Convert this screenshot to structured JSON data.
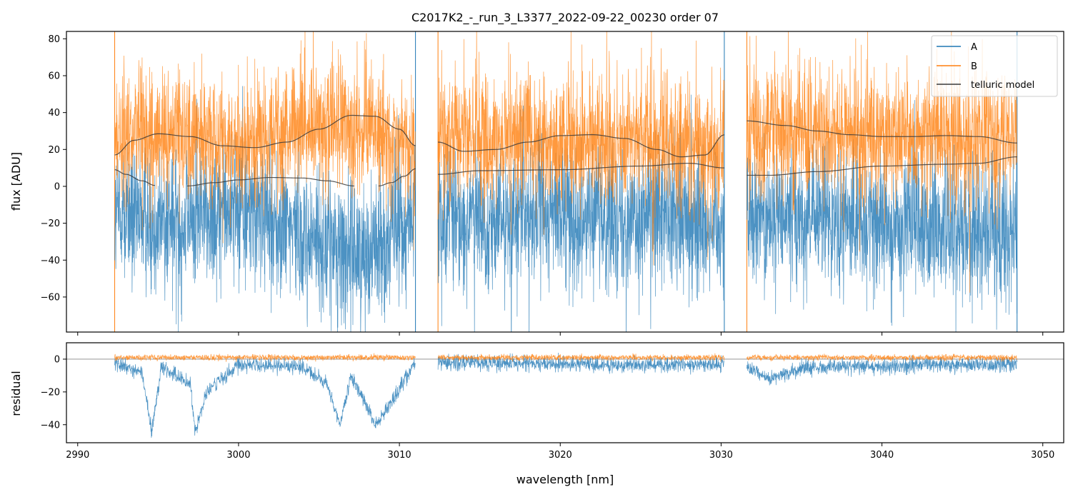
{
  "chart_data": [
    {
      "type": "line",
      "panel": "flux",
      "title": "C2017K2_-_run_3_L3377_2022-09-22_00230  order 07",
      "xlabel": "",
      "ylabel": "flux [ADU]",
      "xlim": [
        2989.3,
        3051.3
      ],
      "ylim": [
        -79,
        84
      ],
      "yticks": [
        -60,
        -40,
        -20,
        0,
        20,
        40,
        60,
        80
      ],
      "ytick_labels": [
        "−60",
        "−40",
        "−20",
        "0",
        "20",
        "40",
        "60",
        "80"
      ],
      "xticks": [
        2990,
        3000,
        3010,
        3020,
        3030,
        3040,
        3050
      ],
      "legend": {
        "placement": "top-right",
        "entries": [
          {
            "label": "A",
            "color": "#1f77b4"
          },
          {
            "label": "B",
            "color": "#ff7f0e"
          },
          {
            "label": "telluric model",
            "color": "#3a3a3a"
          }
        ]
      },
      "segments": [
        [
          2992.3,
          3011.0
        ],
        [
          3012.4,
          3030.2
        ],
        [
          3031.6,
          3048.4
        ]
      ],
      "series": [
        {
          "name": "A",
          "color": "#1f77b4",
          "center_points": [
            [
              2992.3,
              -15
            ],
            [
              2995,
              -20
            ],
            [
              3000,
              -12
            ],
            [
              3005,
              -30
            ],
            [
              3008,
              -35
            ],
            [
              3011,
              -18
            ],
            [
              3012.4,
              -20
            ],
            [
              3020,
              -15
            ],
            [
              3025,
              -18
            ],
            [
              3030.2,
              -20
            ],
            [
              3031.6,
              -15
            ],
            [
              3040,
              -20
            ],
            [
              3048.4,
              -25
            ]
          ],
          "noise_amplitude": 32
        },
        {
          "name": "B",
          "color": "#ff7f0e",
          "center_points": [
            [
              2992.3,
              25
            ],
            [
              2995,
              30
            ],
            [
              3000,
              25
            ],
            [
              3005,
              35
            ],
            [
              3008,
              30
            ],
            [
              3011,
              20
            ],
            [
              3012.4,
              28
            ],
            [
              3020,
              25
            ],
            [
              3025,
              25
            ],
            [
              3030.2,
              20
            ],
            [
              3031.6,
              30
            ],
            [
              3040,
              28
            ],
            [
              3048.4,
              25
            ]
          ],
          "noise_amplitude": 30
        }
      ],
      "telluric_model": {
        "name": "telluric model",
        "color": "#3a3a3a",
        "upper": [
          [
            [
              2992.3,
              17
            ],
            [
              2993.5,
              25
            ],
            [
              2995,
              28.5
            ],
            [
              2997,
              27
            ],
            [
              2999,
              22
            ],
            [
              3001,
              21
            ],
            [
              3003,
              24
            ],
            [
              3005,
              31
            ],
            [
              3007,
              38.5
            ],
            [
              3008.5,
              38
            ],
            [
              3010,
              31
            ],
            [
              3011,
              22
            ]
          ],
          [
            [
              3012.4,
              24
            ],
            [
              3014,
              19
            ],
            [
              3016,
              20
            ],
            [
              3018,
              24
            ],
            [
              3020,
              27.5
            ],
            [
              3022,
              28
            ],
            [
              3024,
              26
            ],
            [
              3026,
              20
            ],
            [
              3027.5,
              16
            ],
            [
              3029,
              17
            ],
            [
              3030.2,
              28
            ]
          ],
          [
            [
              3031.6,
              35.5
            ],
            [
              3034,
              33
            ],
            [
              3036,
              30
            ],
            [
              3038,
              28
            ],
            [
              3040,
              27
            ],
            [
              3042,
              27
            ],
            [
              3044,
              27.5
            ],
            [
              3046,
              27
            ],
            [
              3048.4,
              23.5
            ]
          ]
        ],
        "lower": [
          [
            [
              2992.3,
              9
            ],
            [
              2993,
              6.5
            ],
            [
              2994,
              3
            ],
            [
              2994.8,
              0.5
            ]
          ],
          [
            [
              2996.8,
              0.2
            ],
            [
              2998.5,
              2
            ],
            [
              3000,
              3.5
            ],
            [
              3002,
              4.8
            ],
            [
              3004,
              4.5
            ],
            [
              3005.5,
              3
            ],
            [
              3007.2,
              0.2
            ]
          ],
          [
            [
              3008.7,
              0.2
            ],
            [
              3009.5,
              2
            ],
            [
              3010.3,
              5.5
            ],
            [
              3011,
              9.5
            ]
          ],
          [
            [
              3012.4,
              6.5
            ],
            [
              3015,
              8.5
            ],
            [
              3020,
              9
            ],
            [
              3025,
              11
            ],
            [
              3028,
              12.5
            ],
            [
              3030.2,
              10
            ]
          ],
          [
            [
              3031.6,
              6
            ],
            [
              3033,
              6
            ],
            [
              3036,
              8
            ],
            [
              3040,
              11
            ],
            [
              3044,
              12
            ],
            [
              3046,
              12.5
            ],
            [
              3048.4,
              16
            ]
          ]
        ]
      }
    },
    {
      "type": "line",
      "panel": "residual",
      "title": "",
      "xlabel": "wavelength [nm]",
      "ylabel": "residual",
      "xlim": [
        2989.3,
        3051.3
      ],
      "ylim": [
        -51,
        10
      ],
      "yticks": [
        -40,
        -20,
        0
      ],
      "ytick_labels": [
        "−40",
        "−20",
        "0"
      ],
      "xticks": [
        2990,
        3000,
        3010,
        3020,
        3030,
        3040,
        3050
      ],
      "xtick_labels": [
        "2990",
        "3000",
        "3010",
        "3020",
        "3030",
        "3040",
        "3050"
      ],
      "zero_line": 0,
      "series": [
        {
          "name": "A",
          "color": "#1f77b4",
          "center_points": [
            [
              2992.3,
              -2
            ],
            [
              2994,
              -8
            ],
            [
              2994.6,
              -45
            ],
            [
              2995.2,
              -5
            ],
            [
              2997,
              -15
            ],
            [
              2997.3,
              -45
            ],
            [
              2998,
              -20
            ],
            [
              3000,
              -3
            ],
            [
              3004,
              -5
            ],
            [
              3005.5,
              -15
            ],
            [
              3006.3,
              -40
            ],
            [
              3007,
              -10
            ],
            [
              3008.5,
              -40
            ],
            [
              3009.3,
              -30
            ],
            [
              3011,
              -2
            ],
            [
              3012.4,
              -2
            ],
            [
              3020,
              -3
            ],
            [
              3025,
              -4
            ],
            [
              3030.2,
              -3
            ],
            [
              3031.6,
              -5
            ],
            [
              3033,
              -12
            ],
            [
              3035,
              -5
            ],
            [
              3040,
              -4
            ],
            [
              3048.4,
              -3
            ]
          ],
          "noise_amplitude": 4
        },
        {
          "name": "B",
          "color": "#ff7f0e",
          "center_points": [
            [
              2992.3,
              1
            ],
            [
              3011,
              1
            ],
            [
              3012.4,
              1
            ],
            [
              3030.2,
              1
            ],
            [
              3031.6,
              1
            ],
            [
              3048.4,
              1
            ]
          ],
          "noise_amplitude": 1.5
        }
      ]
    }
  ]
}
